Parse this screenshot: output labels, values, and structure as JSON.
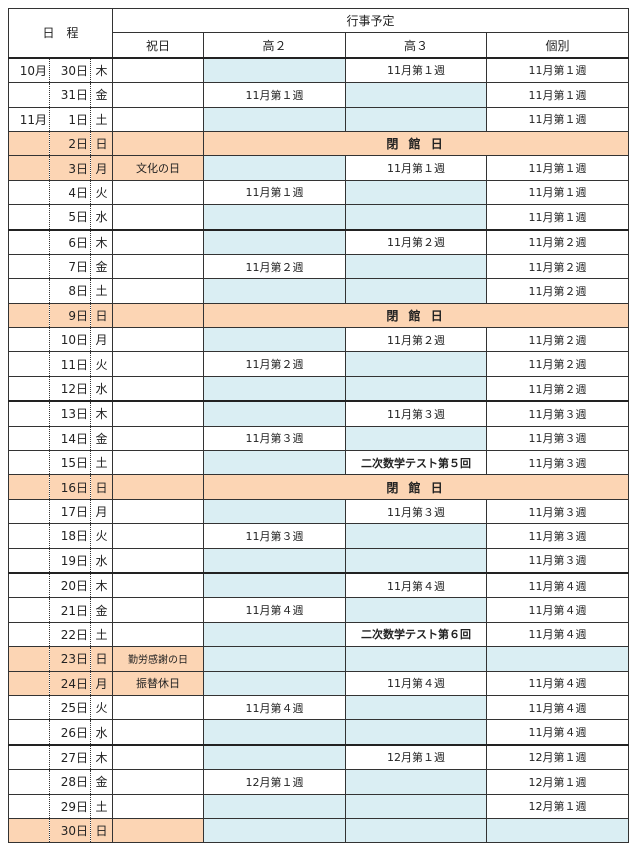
{
  "header": {
    "schedule": "日　程",
    "events": "行事予定",
    "columns": [
      "祝日",
      "高２",
      "高３",
      "個別"
    ]
  },
  "closed_label": "閉 館 日",
  "colors": {
    "holiday": "#fcd5b4",
    "empty": "#daeef3"
  },
  "rows": [
    {
      "month": "10月",
      "day": "30日",
      "dow": "木",
      "holiday": "",
      "k2": "",
      "k3": "11月第１週",
      "ko": "11月第１週"
    },
    {
      "month": "",
      "day": "31日",
      "dow": "金",
      "holiday": "",
      "k2": "11月第１週",
      "k3": "",
      "ko": "11月第１週"
    },
    {
      "month": "11月",
      "day": "1日",
      "dow": "土",
      "holiday": "",
      "k2": "",
      "k3": "",
      "ko": "11月第１週"
    },
    {
      "month": "",
      "day": "2日",
      "dow": "日",
      "closed": true,
      "off": true
    },
    {
      "month": "",
      "day": "3日",
      "dow": "月",
      "holiday": "文化の日",
      "off": true,
      "k2": "",
      "k3": "11月第１週",
      "ko": "11月第１週"
    },
    {
      "month": "",
      "day": "4日",
      "dow": "火",
      "holiday": "",
      "k2": "11月第１週",
      "k3": "",
      "ko": "11月第１週"
    },
    {
      "month": "",
      "day": "5日",
      "dow": "水",
      "holiday": "",
      "k2": "",
      "k3": "",
      "ko": "11月第１週"
    },
    {
      "month": "",
      "day": "6日",
      "dow": "木",
      "holiday": "",
      "k2": "",
      "k3": "11月第２週",
      "ko": "11月第２週",
      "week": true
    },
    {
      "month": "",
      "day": "7日",
      "dow": "金",
      "holiday": "",
      "k2": "11月第２週",
      "k3": "",
      "ko": "11月第２週"
    },
    {
      "month": "",
      "day": "8日",
      "dow": "土",
      "holiday": "",
      "k2": "",
      "k3": "",
      "ko": "11月第２週"
    },
    {
      "month": "",
      "day": "9日",
      "dow": "日",
      "closed": true,
      "off": true
    },
    {
      "month": "",
      "day": "10日",
      "dow": "月",
      "holiday": "",
      "k2": "",
      "k3": "11月第２週",
      "ko": "11月第２週"
    },
    {
      "month": "",
      "day": "11日",
      "dow": "火",
      "holiday": "",
      "k2": "11月第２週",
      "k3": "",
      "ko": "11月第２週"
    },
    {
      "month": "",
      "day": "12日",
      "dow": "水",
      "holiday": "",
      "k2": "",
      "k3": "",
      "ko": "11月第２週"
    },
    {
      "month": "",
      "day": "13日",
      "dow": "木",
      "holiday": "",
      "k2": "",
      "k3": "11月第３週",
      "ko": "11月第３週",
      "week": true
    },
    {
      "month": "",
      "day": "14日",
      "dow": "金",
      "holiday": "",
      "k2": "11月第３週",
      "k3": "",
      "ko": "11月第３週"
    },
    {
      "month": "",
      "day": "15日",
      "dow": "土",
      "holiday": "",
      "k2": "",
      "k3": "二次数学テスト第５回",
      "k3bold": true,
      "ko": "11月第３週"
    },
    {
      "month": "",
      "day": "16日",
      "dow": "日",
      "closed": true,
      "off": true
    },
    {
      "month": "",
      "day": "17日",
      "dow": "月",
      "holiday": "",
      "k2": "",
      "k3": "11月第３週",
      "ko": "11月第３週"
    },
    {
      "month": "",
      "day": "18日",
      "dow": "火",
      "holiday": "",
      "k2": "11月第３週",
      "k3": "",
      "ko": "11月第３週"
    },
    {
      "month": "",
      "day": "19日",
      "dow": "水",
      "holiday": "",
      "k2": "",
      "k3": "",
      "ko": "11月第３週"
    },
    {
      "month": "",
      "day": "20日",
      "dow": "木",
      "holiday": "",
      "k2": "",
      "k3": "11月第４週",
      "ko": "11月第４週",
      "week": true
    },
    {
      "month": "",
      "day": "21日",
      "dow": "金",
      "holiday": "",
      "k2": "11月第４週",
      "k3": "",
      "ko": "11月第４週"
    },
    {
      "month": "",
      "day": "22日",
      "dow": "土",
      "holiday": "",
      "k2": "",
      "k3": "二次数学テスト第６回",
      "k3bold": true,
      "ko": "11月第４週"
    },
    {
      "month": "",
      "day": "23日",
      "dow": "日",
      "holiday": "勤労感謝の日",
      "off": true,
      "k2": "",
      "k3": "",
      "ko": ""
    },
    {
      "month": "",
      "day": "24日",
      "dow": "月",
      "holiday": "振替休日",
      "off": true,
      "k2": "",
      "k3": "11月第４週",
      "ko": "11月第４週"
    },
    {
      "month": "",
      "day": "25日",
      "dow": "火",
      "holiday": "",
      "k2": "11月第４週",
      "k3": "",
      "ko": "11月第４週"
    },
    {
      "month": "",
      "day": "26日",
      "dow": "水",
      "holiday": "",
      "k2": "",
      "k3": "",
      "ko": "11月第４週"
    },
    {
      "month": "",
      "day": "27日",
      "dow": "木",
      "holiday": "",
      "k2": "",
      "k3": "12月第１週",
      "ko": "12月第１週",
      "week": true
    },
    {
      "month": "",
      "day": "28日",
      "dow": "金",
      "holiday": "",
      "k2": "12月第１週",
      "k3": "",
      "ko": "12月第１週"
    },
    {
      "month": "",
      "day": "29日",
      "dow": "土",
      "holiday": "",
      "k2": "",
      "k3": "",
      "ko": "12月第１週"
    },
    {
      "month": "",
      "day": "30日",
      "dow": "日",
      "holiday": "",
      "off": true,
      "k2": "",
      "k3": "",
      "ko": ""
    }
  ]
}
